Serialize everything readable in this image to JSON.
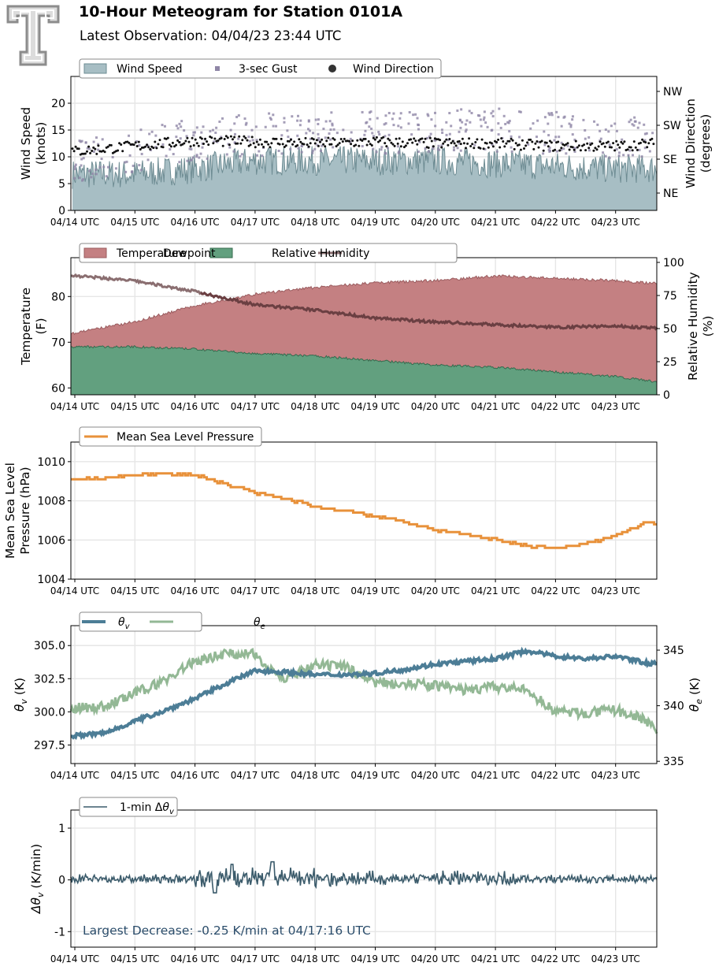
{
  "header": {
    "title": "10-Hour Meteogram for Station 0101A",
    "subtitle": "Latest Observation: 04/04/23 23:44 UTC"
  },
  "x_ticks": [
    "04/14 UTC",
    "04/15 UTC",
    "04/16 UTC",
    "04/17 UTC",
    "04/18 UTC",
    "04/19 UTC",
    "04/20 UTC",
    "04/21 UTC",
    "04/22 UTC",
    "04/23 UTC"
  ],
  "colors": {
    "wind_fill": "#a7bec4",
    "wind_line": "#6e8c93",
    "gust": "#8f86a6",
    "direction": "#111111",
    "temperature": "#c48082",
    "temperature_edge": "#9a5b5e",
    "dewpoint": "#62a07f",
    "dewpoint_edge": "#356b4e",
    "humidity": "#8a6e70",
    "humidity_dark": "#6b3f42",
    "pressure": "#e8913a",
    "theta_v": "#4c7d96",
    "theta_e": "#93b895",
    "dtheta": "#3b5b6b",
    "annotation": "#2b4d6b"
  },
  "chart_data": [
    {
      "type": "area",
      "legend": [
        "Wind Speed",
        "3-sec Gust",
        "Wind Direction"
      ],
      "ylabel": [
        "Wind Speed",
        "(knots)"
      ],
      "y_ticks": [
        0,
        5,
        10,
        15,
        20
      ],
      "ylim": [
        0,
        25
      ],
      "y2label": [
        "Wind Direction",
        "(degrees)"
      ],
      "y2_ticks": [
        "NE",
        "SE",
        "SW",
        "NW"
      ],
      "x": [
        0,
        1,
        2,
        3,
        4,
        5,
        6,
        7,
        8,
        9,
        9.7
      ],
      "wind_speed": [
        6.5,
        6.5,
        7.5,
        9,
        9,
        9,
        9,
        8.5,
        8,
        7.5,
        7.5
      ],
      "gust": [
        9,
        11,
        13.5,
        14,
        14.5,
        14.5,
        15,
        15,
        14.5,
        13.5,
        13.5
      ],
      "direction_level": [
        11,
        12,
        13,
        12.8,
        12.5,
        12.8,
        12.5,
        12.5,
        12,
        12,
        12.5
      ]
    },
    {
      "type": "area",
      "legend": [
        "Temperature",
        "Dewpoint",
        "Relative Humidity"
      ],
      "ylabel": [
        "Temperature",
        "(F)"
      ],
      "y_ticks": [
        60,
        70,
        80
      ],
      "ylim": [
        58.5,
        88.5
      ],
      "y2label": [
        "Relative Humidity",
        "(%)"
      ],
      "y2_ticks": [
        0,
        25,
        50,
        75,
        100
      ],
      "x": [
        0,
        1,
        2,
        3,
        4,
        5,
        6,
        7,
        8,
        9,
        9.7
      ],
      "temperature": [
        72,
        74.5,
        78,
        80.5,
        82,
        83,
        83.5,
        84.5,
        84,
        83.5,
        82.8
      ],
      "dewpoint": [
        69,
        69,
        68.5,
        67.5,
        67,
        66,
        65,
        64.5,
        63.5,
        62.5,
        61.3
      ],
      "relative_humidity": [
        90,
        86,
        78,
        68,
        64,
        58,
        55,
        53,
        51,
        52,
        50
      ]
    },
    {
      "type": "line",
      "legend": [
        "Mean Sea Level Pressure"
      ],
      "ylabel": [
        "Mean Sea Level",
        "Pressure (hPa)"
      ],
      "y_ticks": [
        1004,
        1006,
        1008,
        1010
      ],
      "ylim": [
        1004,
        1011
      ],
      "x": [
        0,
        0.5,
        1,
        1.5,
        2,
        2.5,
        3,
        3.5,
        4,
        4.5,
        5,
        5.5,
        6,
        6.5,
        7,
        7.5,
        8,
        8.5,
        9,
        9.5,
        9.7
      ],
      "msl_pressure": [
        1009.1,
        1009.2,
        1009.3,
        1009.4,
        1009.3,
        1008.9,
        1008.4,
        1008.1,
        1007.7,
        1007.5,
        1007.2,
        1006.9,
        1006.5,
        1006.3,
        1006,
        1005.7,
        1005.6,
        1005.8,
        1006.2,
        1006.9,
        1006.8
      ]
    },
    {
      "type": "line",
      "legend": [
        "θv",
        "θe"
      ],
      "ylabel": [
        "θv (K)"
      ],
      "y_ticks": [
        297.5,
        300.0,
        302.5,
        305.0
      ],
      "ylim": [
        296.1,
        306.5
      ],
      "y2label": [
        "θe (K)"
      ],
      "y2_ticks": [
        335,
        340,
        345
      ],
      "y2lim": [
        334.8,
        347.2
      ],
      "x": [
        0,
        0.5,
        1,
        1.5,
        2,
        2.5,
        3,
        3.5,
        4,
        4.5,
        5,
        5.5,
        6,
        6.5,
        7,
        7.5,
        8,
        8.5,
        9,
        9.5,
        9.7
      ],
      "theta_v": [
        298.2,
        298.4,
        299.3,
        300.1,
        301,
        302.1,
        303.1,
        303,
        302.8,
        302.8,
        302.9,
        303.2,
        303.6,
        303.8,
        304,
        304.6,
        304.2,
        304,
        304.2,
        303.7,
        303.6
      ],
      "theta_e": [
        339.8,
        339.9,
        341.1,
        342.3,
        344,
        344.7,
        344.6,
        342.3,
        343.6,
        343.5,
        342.1,
        342,
        341.8,
        341.4,
        341.7,
        341.4,
        339.5,
        339.3,
        339.6,
        338.7,
        337.8
      ]
    },
    {
      "type": "line",
      "legend": [
        "1-min Δθv"
      ],
      "ylabel": [
        "Δθv (K/min)"
      ],
      "y_ticks": [
        -1,
        0,
        1
      ],
      "ylim": [
        -1.3,
        1.35
      ],
      "x": [
        0,
        2,
        3,
        3.4,
        4,
        5,
        6,
        7,
        8,
        9,
        9.7
      ],
      "delta_theta_v": [
        0,
        0.05,
        0.1,
        -0.25,
        0.05,
        0.1,
        0.1,
        0.08,
        0.03,
        0.03,
        0.05
      ],
      "annotation": "Largest Decrease: -0.25 K/min at 04/17:16 UTC"
    }
  ]
}
